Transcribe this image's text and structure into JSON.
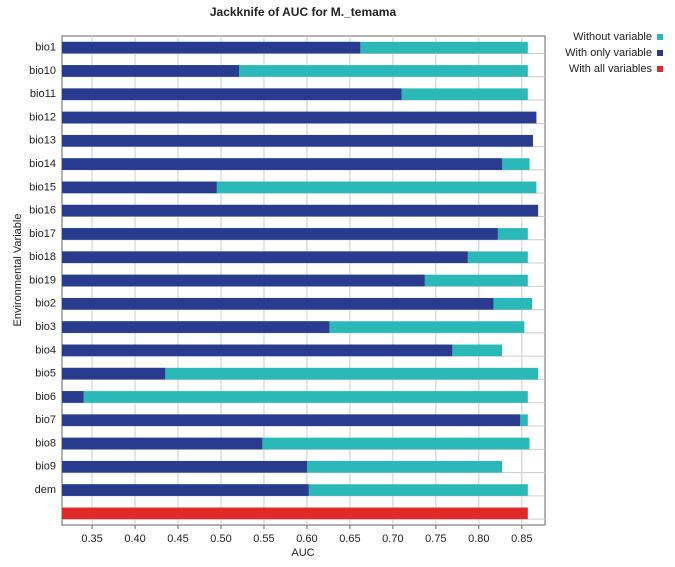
{
  "chart_data": {
    "type": "bar",
    "orientation": "horizontal",
    "overlap": true,
    "title": "Jackknife of AUC for M._temama",
    "x_label": "AUC",
    "y_label": "Environmental Variable",
    "categories": [
      "bio1",
      "bio10",
      "bio11",
      "bio12",
      "bio13",
      "bio14",
      "bio15",
      "bio16",
      "bio17",
      "bio18",
      "bio19",
      "bio2",
      "bio3",
      "bio4",
      "bio5",
      "bio6",
      "bio7",
      "bio8",
      "bio9",
      "dem",
      null
    ],
    "series": [
      {
        "name": "Without variable",
        "color": "#2ab8b8",
        "values": [
          0.857,
          0.857,
          0.857,
          0.865,
          0.862,
          0.859,
          0.867,
          0.865,
          0.857,
          0.857,
          0.857,
          0.862,
          0.853,
          0.827,
          0.869,
          0.857,
          0.857,
          0.859,
          0.827,
          0.857,
          null
        ]
      },
      {
        "name": "With only variable",
        "color": "#283b8f",
        "values": [
          0.662,
          0.521,
          0.71,
          0.867,
          0.863,
          0.827,
          0.495,
          0.869,
          0.822,
          0.787,
          0.737,
          0.817,
          0.626,
          0.769,
          0.435,
          0.34,
          0.848,
          0.548,
          0.6,
          0.602,
          null
        ]
      },
      {
        "name": "With all variables",
        "color": "#e02a2a",
        "values": [
          null,
          null,
          null,
          null,
          null,
          null,
          null,
          null,
          null,
          null,
          null,
          null,
          null,
          null,
          null,
          null,
          null,
          null,
          null,
          null,
          0.857
        ]
      }
    ],
    "xlim": [
      0.315,
      0.877
    ],
    "xticks": [
      0.35,
      {
        "value": 0.4,
        "label": "0.40"
      },
      0.45,
      {
        "value": 0.5,
        "label": "0.50"
      },
      0.55,
      {
        "value": 0.6,
        "label": "0.60"
      },
      0.65,
      {
        "value": 0.7,
        "label": "0.70"
      },
      0.75,
      {
        "value": 0.8,
        "label": "0.80"
      },
      0.85
    ],
    "grid": true,
    "legend": "outside-right"
  }
}
